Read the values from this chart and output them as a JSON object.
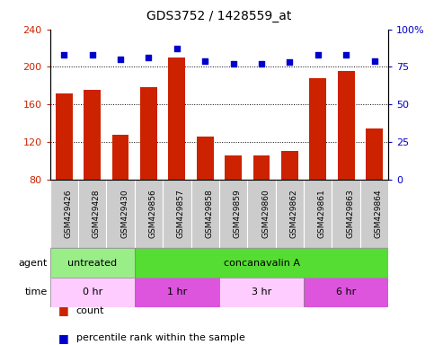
{
  "title": "GDS3752 / 1428559_at",
  "samples": [
    "GSM429426",
    "GSM429428",
    "GSM429430",
    "GSM429856",
    "GSM429857",
    "GSM429858",
    "GSM429859",
    "GSM429860",
    "GSM429862",
    "GSM429861",
    "GSM429863",
    "GSM429864"
  ],
  "count_values": [
    172,
    175,
    128,
    178,
    210,
    126,
    106,
    106,
    110,
    188,
    196,
    134
  ],
  "percentile_values": [
    83,
    83,
    80,
    81,
    87,
    79,
    77,
    77,
    78,
    83,
    83,
    79
  ],
  "bar_color": "#cc2200",
  "dot_color": "#0000cc",
  "ylim_left": [
    80,
    240
  ],
  "ylim_right": [
    0,
    100
  ],
  "yticks_left": [
    80,
    120,
    160,
    200,
    240
  ],
  "yticks_right": [
    0,
    25,
    50,
    75,
    100
  ],
  "agent_groups": [
    {
      "label": "untreated",
      "start": 0,
      "end": 3,
      "color": "#99ee88"
    },
    {
      "label": "concanavalin A",
      "start": 3,
      "end": 12,
      "color": "#55dd33"
    }
  ],
  "time_groups": [
    {
      "label": "0 hr",
      "start": 0,
      "end": 3,
      "color": "#ffccff"
    },
    {
      "label": "1 hr",
      "start": 3,
      "end": 6,
      "color": "#dd55dd"
    },
    {
      "label": "3 hr",
      "start": 6,
      "end": 9,
      "color": "#ffccff"
    },
    {
      "label": "6 hr",
      "start": 9,
      "end": 12,
      "color": "#dd55dd"
    }
  ],
  "bg_color": "#ffffff",
  "tick_label_color_left": "#cc2200",
  "tick_label_color_right": "#0000cc",
  "sample_bg_color": "#cccccc",
  "title_fontsize": 10,
  "axis_fontsize": 8,
  "sample_fontsize": 6.5,
  "row_fontsize": 8,
  "legend_fontsize": 8
}
